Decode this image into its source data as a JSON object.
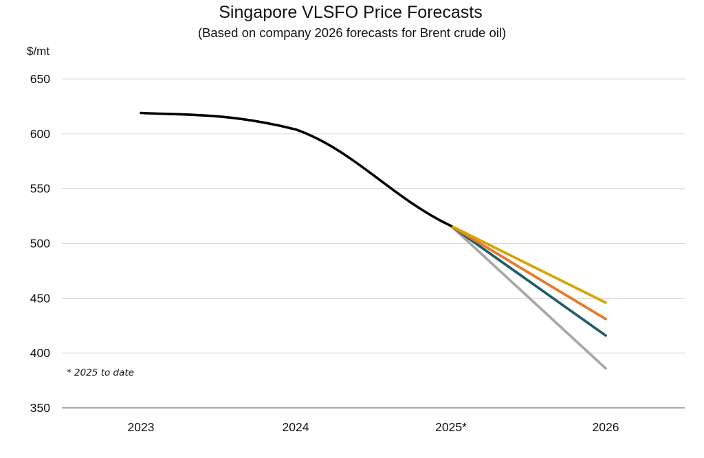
{
  "chart_data": {
    "type": "line",
    "title": "Singapore VLSFO Price Forecasts",
    "subtitle": "(Based on company 2026 forecasts for Brent crude oil)",
    "ylabel": "$/mt",
    "xlabel": "",
    "categories": [
      "2023",
      "2024",
      "2025*",
      "2026"
    ],
    "ylim": [
      350,
      650
    ],
    "yticks": [
      350,
      400,
      450,
      500,
      550,
      600,
      650
    ],
    "grid": true,
    "legend": "none",
    "footnote": "* 2025 to date",
    "series": [
      {
        "color": "#000000",
        "smooth": true,
        "points": [
          [
            "2023",
            619
          ],
          [
            "2024",
            604
          ],
          [
            "2025*",
            516
          ]
        ]
      },
      {
        "color": "#D9A300",
        "smooth": false,
        "points": [
          [
            "2025*",
            516
          ],
          [
            "2026",
            446
          ]
        ]
      },
      {
        "color": "#E8792B",
        "smooth": false,
        "points": [
          [
            "2025*",
            516
          ],
          [
            "2026",
            431
          ]
        ]
      },
      {
        "color": "#1F5F68",
        "smooth": false,
        "points": [
          [
            "2025*",
            516
          ],
          [
            "2026",
            416
          ]
        ]
      },
      {
        "color": "#A8A8A8",
        "smooth": false,
        "points": [
          [
            "2025*",
            516
          ],
          [
            "2026",
            386
          ]
        ]
      }
    ]
  }
}
